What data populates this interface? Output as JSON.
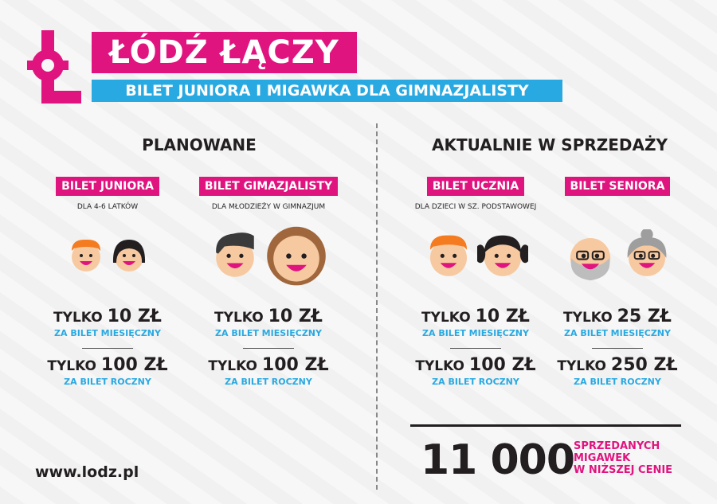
{
  "header": {
    "logo_text": "Ł",
    "title": "ŁÓDŹ ŁĄCZY",
    "subtitle": "BILET JUNIORA I MIGAWKA DLA GIMNAZJALISTY"
  },
  "colors": {
    "pink": "#e0147f",
    "blue": "#29a9e1",
    "dark": "#231f20"
  },
  "sections": {
    "planned": "PLANOWANE",
    "current": "AKTUALNIE W SPRZEDAŻY"
  },
  "tickets": [
    {
      "label": "BILET JUNIORA",
      "desc": "DLA 4-6 LATKÓW",
      "monthly_prefix": "TYLKO",
      "monthly_price": "10 ZŁ",
      "monthly_label": "ZA BILET MIESIĘCZNY",
      "yearly_prefix": "TYLKO",
      "yearly_price": "100 ZŁ",
      "yearly_label": "ZA BILET ROCZNY"
    },
    {
      "label": "BILET GIMAZJALISTY",
      "desc": "DLA MŁODZIEŻY W GIMNAZJUM",
      "monthly_prefix": "TYLKO",
      "monthly_price": "10 ZŁ",
      "monthly_label": "ZA BILET MIESIĘCZNY",
      "yearly_prefix": "TYLKO",
      "yearly_price": "100 ZŁ",
      "yearly_label": "ZA BILET ROCZNY"
    },
    {
      "label": "BILET UCZNIA",
      "desc": "DLA DZIECI W SZ. PODSTAWOWEJ",
      "monthly_prefix": "TYLKO",
      "monthly_price": "10 ZŁ",
      "monthly_label": "ZA BILET MIESIĘCZNY",
      "yearly_prefix": "TYLKO",
      "yearly_price": "100 ZŁ",
      "yearly_label": "ZA BILET ROCZNY"
    },
    {
      "label": "BILET SENIORA",
      "desc": "",
      "monthly_prefix": "TYLKO",
      "monthly_price": "25 ZŁ",
      "monthly_label": "ZA BILET MIESIĘCZNY",
      "yearly_prefix": "TYLKO",
      "yearly_price": "250 ZŁ",
      "yearly_label": "ZA BILET ROCZNY"
    }
  ],
  "stats": {
    "count": "11 000",
    "line1": "SPRZEDANYCH",
    "line2": "MIGAWEK",
    "line3": "W NIŻSZEJ CENIE"
  },
  "footer": {
    "url": "www.lodz.pl"
  }
}
